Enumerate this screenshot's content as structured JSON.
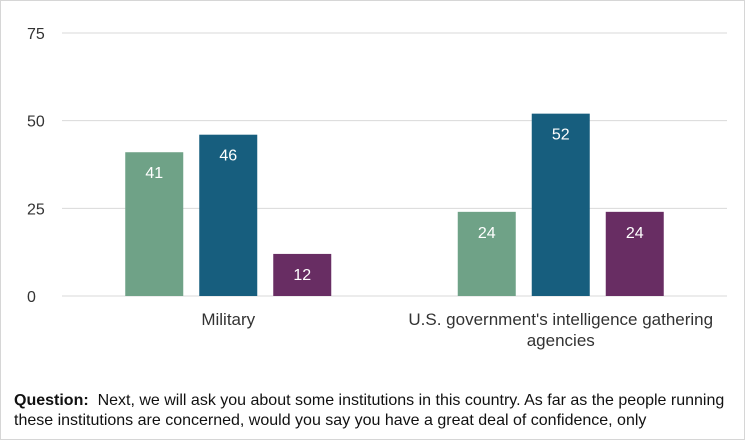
{
  "chart_data": {
    "type": "bar",
    "categories": [
      "Military",
      "U.S. government's intelligence gathering agencies"
    ],
    "category_lines": [
      [
        "Military"
      ],
      [
        "U.S. government's intelligence gathering",
        "agencies"
      ]
    ],
    "series": [
      {
        "values": [
          41,
          24
        ],
        "color": "#6fa287"
      },
      {
        "values": [
          46,
          52
        ],
        "color": "#175e7e"
      },
      {
        "values": [
          12,
          24
        ],
        "color": "#682d63"
      }
    ],
    "ylim": [
      0,
      75
    ],
    "yticks": [
      0,
      25,
      50,
      75
    ],
    "grid": true,
    "title": "",
    "xlabel": "",
    "ylabel": ""
  },
  "question": {
    "label": "Question:",
    "text": "Next, we will ask you about some institutions in this country. As far as the people running these institutions are concerned, would you say you have a great deal of confidence, only"
  },
  "colors": {
    "grid": "#d9d9d9",
    "axis_text": "#333333",
    "background": "#ffffff"
  }
}
